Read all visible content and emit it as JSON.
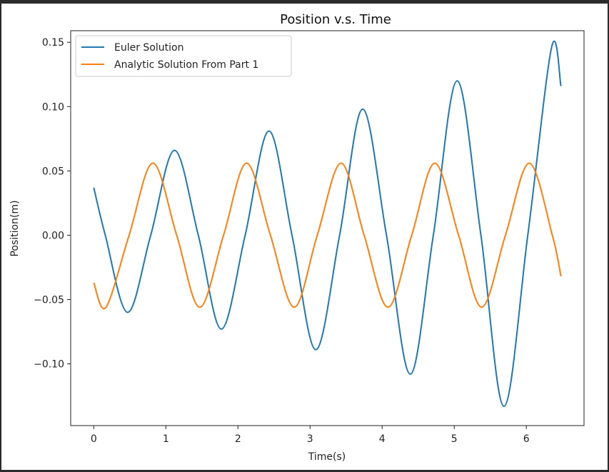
{
  "chart_data": {
    "type": "line",
    "title": "Position v.s. Time",
    "xlabel": "Time(s)",
    "ylabel": "Position(m)",
    "xlim": [
      -0.32,
      6.8
    ],
    "ylim": [
      -0.148,
      0.159
    ],
    "xticks": [
      0,
      1,
      2,
      3,
      4,
      5,
      6
    ],
    "xtick_labels": [
      "0",
      "1",
      "2",
      "3",
      "4",
      "5",
      "6"
    ],
    "yticks": [
      0.15,
      0.1,
      0.05,
      0.0,
      -0.05,
      -0.1
    ],
    "ytick_labels": [
      "0.15",
      "0.10",
      "0.05",
      "0.00",
      "−0.05",
      "−0.10"
    ],
    "grid": false,
    "legend_position": "upper-left",
    "series": [
      {
        "name": "Euler Solution",
        "color": "#1f77b4",
        "x": [
          0,
          0.16,
          0.47,
          0.79,
          1.12,
          1.45,
          1.77,
          2.1,
          2.43,
          2.75,
          3.08,
          3.41,
          3.73,
          4.06,
          4.39,
          4.71,
          5.04,
          5.37,
          5.69,
          6.02,
          6.35,
          6.48
        ],
        "y": [
          0.037,
          0.0,
          -0.06,
          0.0,
          0.066,
          0.0,
          -0.073,
          0.0,
          0.081,
          0.0,
          -0.089,
          0.0,
          0.098,
          0.0,
          -0.108,
          0.0,
          0.12,
          0.0,
          -0.133,
          0.0,
          0.146,
          0.116
        ]
      },
      {
        "name": "Analytic Solution From Part 1",
        "color": "#ff7f0e",
        "x": [
          0,
          0.17,
          0.49,
          0.82,
          1.15,
          1.47,
          1.8,
          2.12,
          2.45,
          2.78,
          3.1,
          3.43,
          3.75,
          4.08,
          4.41,
          4.73,
          5.06,
          5.38,
          5.71,
          6.04,
          6.36,
          6.48
        ],
        "y": [
          -0.037,
          -0.056,
          0.0,
          0.056,
          0.0,
          -0.056,
          0.0,
          0.056,
          0.0,
          -0.056,
          0.0,
          0.056,
          0.0,
          -0.056,
          0.0,
          0.056,
          0.0,
          -0.056,
          0.0,
          0.056,
          0.0,
          -0.032
        ]
      }
    ]
  }
}
